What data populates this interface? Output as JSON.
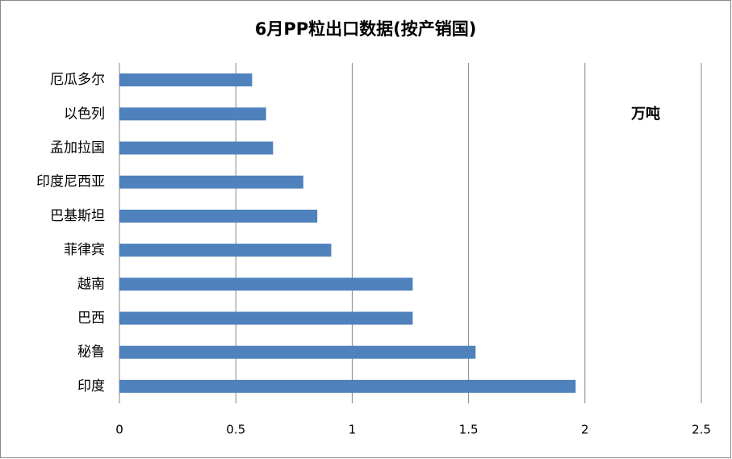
{
  "chart_data": {
    "type": "bar",
    "orientation": "horizontal",
    "title": "6月PP粒出口数据(按产销国)",
    "annotation": "万吨",
    "categories": [
      "厄瓜多尔",
      "以色列",
      "孟加拉国",
      "印度尼西亚",
      "巴基斯坦",
      "菲律宾",
      "越南",
      "巴西",
      "秘鲁",
      "印度"
    ],
    "values": [
      0.57,
      0.63,
      0.66,
      0.79,
      0.85,
      0.91,
      1.26,
      1.26,
      1.53,
      1.96
    ],
    "color": "#4f81bd",
    "xlim": [
      0,
      2.5
    ],
    "xticks": [
      0,
      0.5,
      1,
      1.5,
      2,
      2.5
    ],
    "grid": true
  }
}
